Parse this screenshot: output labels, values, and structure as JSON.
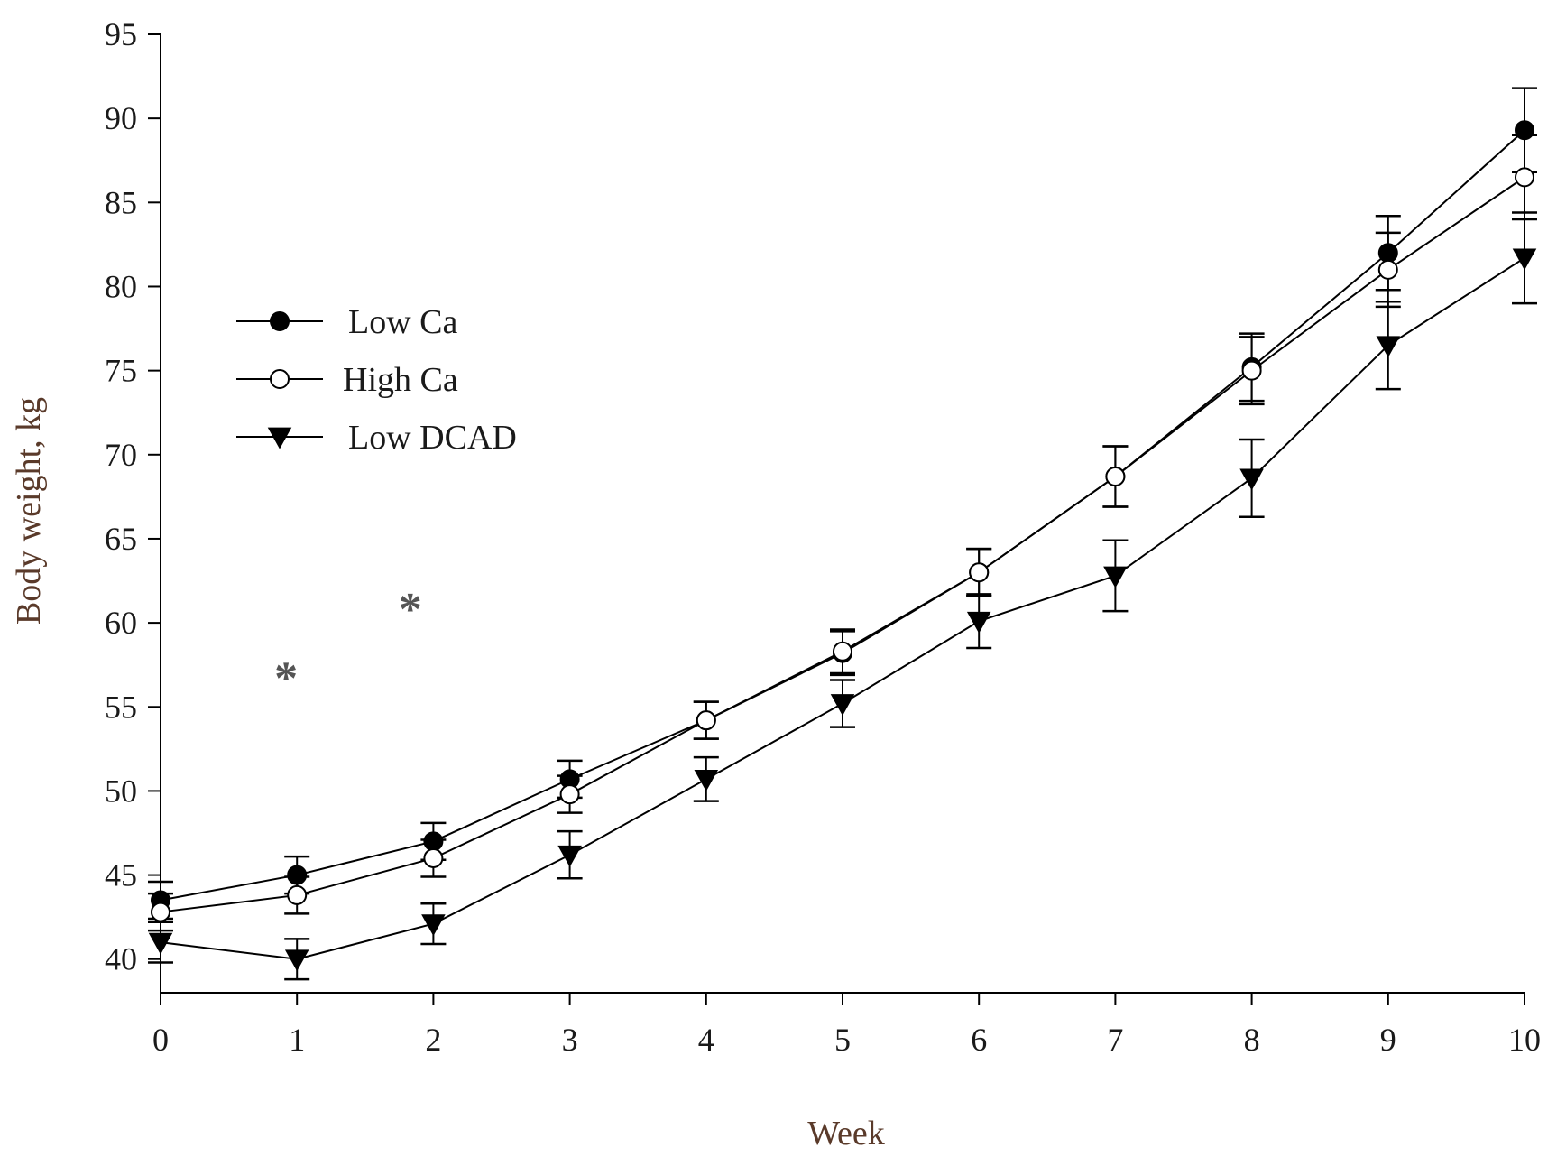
{
  "chart_data": {
    "type": "line",
    "title": "",
    "xlabel": "Week",
    "ylabel": "Body weight, kg",
    "xlim": [
      0,
      10
    ],
    "ylim": [
      38,
      95
    ],
    "x_ticks": [
      0,
      1,
      2,
      3,
      4,
      5,
      6,
      7,
      8,
      9,
      10
    ],
    "y_ticks": [
      40,
      45,
      50,
      55,
      60,
      65,
      70,
      75,
      80,
      85,
      90,
      95
    ],
    "grid": false,
    "legend_position": "upper-left",
    "x": [
      0,
      1,
      2,
      3,
      4,
      5,
      6,
      7,
      8,
      9,
      10
    ],
    "series": [
      {
        "name": "Low Ca",
        "marker": "filled-circle",
        "values": [
          43.5,
          45.0,
          47.0,
          50.7,
          54.2,
          58.2,
          63.0,
          68.7,
          75.2,
          82.0,
          89.3
        ],
        "error": [
          1.1,
          1.1,
          1.1,
          1.1,
          1.1,
          1.3,
          1.4,
          1.8,
          2.0,
          2.2,
          2.5
        ]
      },
      {
        "name": "High Ca",
        "marker": "open-circle",
        "values": [
          42.8,
          43.8,
          46.0,
          49.8,
          54.2,
          58.3,
          63.0,
          68.7,
          75.0,
          81.0,
          86.5
        ],
        "error": [
          1.1,
          1.1,
          1.1,
          1.1,
          1.1,
          1.3,
          1.4,
          1.8,
          2.0,
          2.2,
          2.5
        ]
      },
      {
        "name": "Low DCAD",
        "marker": "filled-triangle-down",
        "values": [
          41.0,
          40.0,
          42.1,
          46.2,
          50.7,
          55.2,
          60.1,
          62.8,
          68.6,
          76.5,
          81.7
        ],
        "error": [
          1.2,
          1.2,
          1.2,
          1.4,
          1.3,
          1.4,
          1.6,
          2.1,
          2.3,
          2.6,
          2.7
        ]
      }
    ],
    "annotations": [
      {
        "text": "*",
        "x": 0.92,
        "y": 57.3
      },
      {
        "text": "*",
        "x": 1.83,
        "y": 61.4
      }
    ]
  }
}
